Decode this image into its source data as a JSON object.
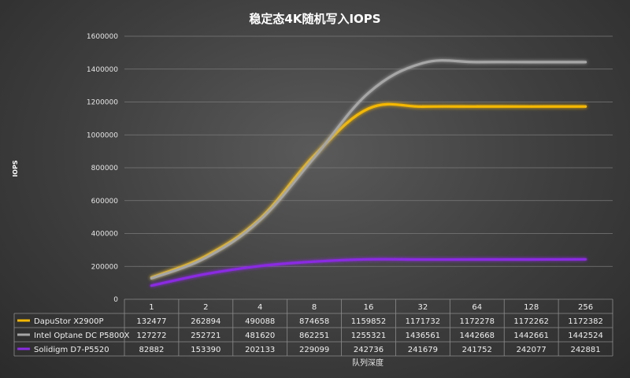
{
  "chart_data": {
    "type": "line",
    "title": "稳定态4K随机写入IOPS",
    "ylabel": "IOPS",
    "xlabel": "队列深度",
    "ylim": [
      0,
      1600000
    ],
    "yticks": [
      0,
      200000,
      400000,
      600000,
      800000,
      1000000,
      1200000,
      1400000,
      1600000
    ],
    "categories": [
      "1",
      "2",
      "4",
      "8",
      "16",
      "32",
      "64",
      "128",
      "256"
    ],
    "grid": true,
    "legend": "data-table",
    "series": [
      {
        "name": "DapuStor X2900P",
        "color": "#f5b800",
        "values": [
          132477,
          262894,
          490088,
          874658,
          1159852,
          1171732,
          1172278,
          1172262,
          1172382
        ]
      },
      {
        "name": "Intel Optane DC P5800X",
        "color": "#a6a6a6",
        "values": [
          127272,
          252721,
          481620,
          862251,
          1255321,
          1436561,
          1442668,
          1442661,
          1442524
        ]
      },
      {
        "name": "Solidigm D7-P5520",
        "color": "#8a2be2",
        "values": [
          82882,
          153390,
          202133,
          229099,
          242736,
          241679,
          241752,
          242077,
          242881
        ]
      }
    ]
  }
}
